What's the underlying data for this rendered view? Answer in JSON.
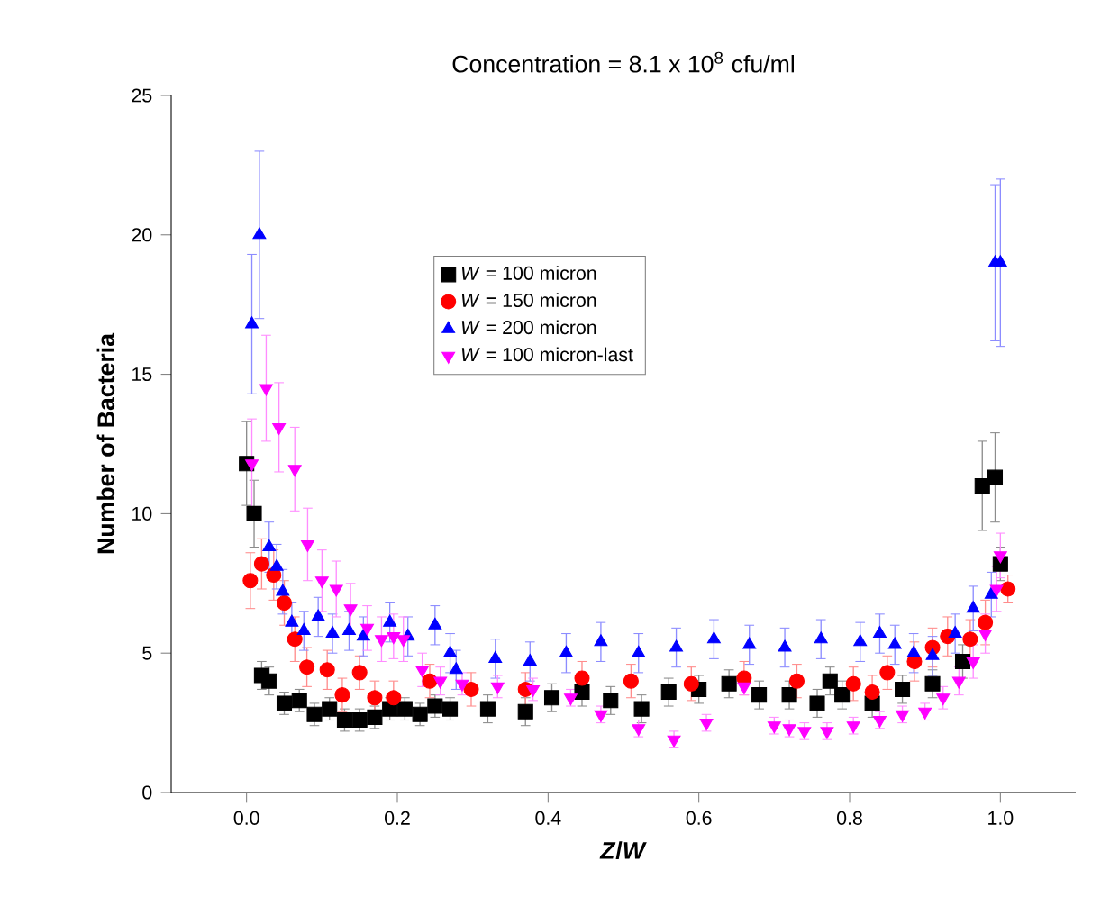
{
  "chart_data": {
    "type": "scatter",
    "title": "Concentration  = 8.1 x 10$^{8}$ cfu/ml",
    "xlabel": "*Z*/*W*",
    "ylabel": "Number of Bacteria",
    "xlim": [
      -0.1,
      1.1
    ],
    "ylim": [
      0,
      25
    ],
    "xticks": [
      {
        "value": 0,
        "label": "0.0"
      },
      {
        "value": 0.2,
        "label": "0.2"
      },
      {
        "value": 0.4,
        "label": "0.4"
      },
      {
        "value": 0.6,
        "label": "0.6"
      },
      {
        "value": 0.8,
        "label": "0.8"
      },
      {
        "value": 1,
        "label": "1.0"
      }
    ],
    "yticks": [
      0,
      5,
      10,
      15,
      20,
      25
    ],
    "grid": false,
    "legend": "top",
    "series": [
      {
        "name": "*W* = 100 micron",
        "color": "#000000",
        "marker": "square",
        "x": [
          0.0,
          0.01,
          0.02,
          0.03,
          0.05,
          0.07,
          0.09,
          0.11,
          0.13,
          0.15,
          0.17,
          0.19,
          0.21,
          0.23,
          0.25,
          0.27,
          0.32,
          0.37,
          0.405,
          0.445,
          0.483,
          0.524,
          0.56,
          0.6,
          0.64,
          0.68,
          0.72,
          0.757,
          0.774,
          0.79,
          0.83,
          0.87,
          0.91,
          0.95,
          0.976,
          0.993,
          1.0
        ],
        "values": [
          11.8,
          10.0,
          4.2,
          4.0,
          3.2,
          3.3,
          2.8,
          3.0,
          2.6,
          2.6,
          2.7,
          3.0,
          3.0,
          2.8,
          3.1,
          3.0,
          3.0,
          2.9,
          3.4,
          3.6,
          3.3,
          3.0,
          3.6,
          3.7,
          3.9,
          3.5,
          3.5,
          3.2,
          4.0,
          3.5,
          3.2,
          3.7,
          3.9,
          4.7,
          11.0,
          11.3,
          8.2
        ],
        "errors": [
          1.5,
          1.2,
          0.5,
          0.5,
          0.4,
          0.4,
          0.4,
          0.4,
          0.4,
          0.4,
          0.4,
          0.4,
          0.4,
          0.4,
          0.4,
          0.4,
          0.5,
          0.5,
          0.5,
          0.5,
          0.5,
          0.5,
          0.5,
          0.5,
          0.5,
          0.5,
          0.5,
          0.5,
          0.5,
          0.5,
          0.5,
          0.5,
          0.5,
          0.6,
          1.6,
          1.6,
          0.6
        ]
      },
      {
        "name": "*W* = 150 micron",
        "color": "#ff0000",
        "marker": "circle",
        "x": [
          0.005,
          0.02,
          0.036,
          0.05,
          0.064,
          0.08,
          0.107,
          0.127,
          0.15,
          0.17,
          0.195,
          0.243,
          0.298,
          0.37,
          0.445,
          0.51,
          0.59,
          0.66,
          0.73,
          0.805,
          0.83,
          0.85,
          0.886,
          0.91,
          0.93,
          0.96,
          0.98,
          1.01
        ],
        "values": [
          7.6,
          8.2,
          7.8,
          6.8,
          5.5,
          4.5,
          4.4,
          3.5,
          4.3,
          3.4,
          3.4,
          4.0,
          3.7,
          3.7,
          4.1,
          4.0,
          3.9,
          4.1,
          4.0,
          3.9,
          3.6,
          4.3,
          4.7,
          5.2,
          5.6,
          5.5,
          6.1,
          7.3
        ],
        "errors": [
          1.0,
          0.9,
          0.9,
          0.8,
          0.8,
          0.7,
          0.7,
          0.6,
          0.6,
          0.6,
          0.6,
          0.6,
          0.6,
          0.6,
          0.6,
          0.6,
          0.6,
          0.6,
          0.6,
          0.6,
          0.6,
          0.6,
          0.7,
          0.7,
          0.7,
          0.7,
          0.8,
          0.5
        ]
      },
      {
        "name": "*W* = 200 micron",
        "color": "#0000ff",
        "marker": "triangle",
        "x": [
          0.007,
          0.017,
          0.03,
          0.04,
          0.048,
          0.06,
          0.076,
          0.095,
          0.114,
          0.136,
          0.155,
          0.19,
          0.214,
          0.25,
          0.27,
          0.278,
          0.33,
          0.376,
          0.424,
          0.47,
          0.52,
          0.57,
          0.62,
          0.667,
          0.714,
          0.762,
          0.814,
          0.84,
          0.86,
          0.885,
          0.91,
          0.94,
          0.964,
          0.988,
          0.993,
          1.0
        ],
        "values": [
          16.8,
          20.0,
          8.8,
          8.1,
          7.2,
          6.1,
          5.8,
          6.3,
          5.7,
          5.8,
          5.6,
          6.1,
          5.6,
          6.0,
          5.0,
          4.4,
          4.8,
          4.7,
          5.0,
          5.4,
          5.0,
          5.2,
          5.5,
          5.3,
          5.2,
          5.5,
          5.4,
          5.7,
          5.3,
          5.0,
          4.9,
          5.7,
          6.6,
          7.1,
          19.0,
          19.0
        ],
        "errors": [
          2.5,
          3.0,
          0.9,
          0.8,
          0.8,
          0.7,
          0.7,
          0.7,
          0.7,
          0.7,
          0.7,
          0.7,
          0.7,
          0.7,
          0.7,
          0.7,
          0.7,
          0.7,
          0.7,
          0.7,
          0.7,
          0.7,
          0.7,
          0.7,
          0.7,
          0.7,
          0.7,
          0.7,
          0.7,
          0.7,
          0.7,
          0.7,
          0.8,
          0.8,
          2.8,
          3.0
        ]
      },
      {
        "name": "*W* =  100 micron-last",
        "color": "#ff00ff",
        "marker": "triangle-down",
        "x": [
          0.007,
          0.026,
          0.043,
          0.064,
          0.081,
          0.1,
          0.119,
          0.138,
          0.16,
          0.179,
          0.195,
          0.208,
          0.233,
          0.257,
          0.286,
          0.333,
          0.38,
          0.43,
          0.47,
          0.52,
          0.567,
          0.61,
          0.66,
          0.7,
          0.72,
          0.74,
          0.77,
          0.805,
          0.84,
          0.87,
          0.9,
          0.924,
          0.945,
          0.964,
          0.98,
          0.995,
          1.0
        ],
        "values": [
          11.8,
          14.5,
          13.1,
          11.6,
          8.9,
          7.6,
          7.3,
          6.6,
          5.9,
          5.5,
          5.6,
          5.5,
          4.4,
          4.0,
          3.9,
          3.8,
          3.7,
          3.4,
          2.8,
          2.3,
          1.9,
          2.5,
          3.8,
          2.4,
          2.3,
          2.2,
          2.2,
          2.4,
          2.6,
          2.8,
          2.9,
          3.4,
          4.0,
          4.7,
          5.7,
          7.3,
          8.5
        ],
        "errors": [
          1.6,
          1.9,
          1.6,
          1.5,
          1.3,
          1.1,
          1.0,
          0.9,
          0.8,
          0.8,
          0.8,
          0.8,
          0.6,
          0.5,
          0.4,
          0.4,
          0.4,
          0.3,
          0.3,
          0.3,
          0.3,
          0.3,
          0.3,
          0.3,
          0.3,
          0.3,
          0.3,
          0.3,
          0.3,
          0.3,
          0.3,
          0.4,
          0.5,
          0.6,
          0.7,
          0.8,
          0.8
        ]
      }
    ]
  }
}
